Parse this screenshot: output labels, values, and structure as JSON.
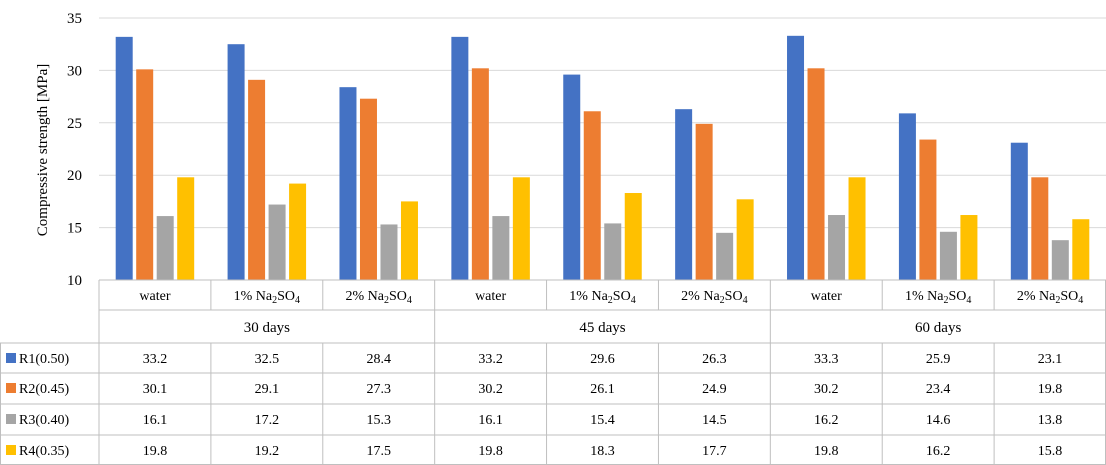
{
  "chart_data": {
    "type": "bar",
    "ylabel": "Compressive strength [MPa]",
    "ylim": [
      10,
      35
    ],
    "yticks": [
      10,
      15,
      20,
      25,
      30,
      35
    ],
    "grid": true,
    "legend": "data-table",
    "groups": [
      {
        "label": "30 days",
        "categories": [
          {
            "text": "water"
          },
          {
            "text": "1% Na",
            "sub": "2",
            "text2": "SO",
            "sub2": "4"
          },
          {
            "text": "2% Na",
            "sub": "2",
            "text2": "SO",
            "sub2": "4"
          }
        ]
      },
      {
        "label": "45 days",
        "categories": [
          {
            "text": "water"
          },
          {
            "text": "1% Na",
            "sub": "2",
            "text2": "SO",
            "sub2": "4"
          },
          {
            "text": "2% Na",
            "sub": "2",
            "text2": "SO",
            "sub2": "4"
          }
        ]
      },
      {
        "label": "60 days",
        "categories": [
          {
            "text": "water"
          },
          {
            "text": "1% Na",
            "sub": "2",
            "text2": "SO",
            "sub2": "4"
          },
          {
            "text": "2% Na",
            "sub": "2",
            "text2": "SO",
            "sub2": "4"
          }
        ]
      }
    ],
    "series": [
      {
        "name": "R1(0.50)",
        "color": "#4472C4",
        "values": [
          33.2,
          32.5,
          28.4,
          33.2,
          29.6,
          26.3,
          33.3,
          25.9,
          23.1
        ]
      },
      {
        "name": "R2(0.45)",
        "color": "#ED7D31",
        "values": [
          30.1,
          29.1,
          27.3,
          30.2,
          26.1,
          24.9,
          30.2,
          23.4,
          19.8
        ]
      },
      {
        "name": "R3(0.40)",
        "color": "#A5A5A5",
        "values": [
          16.1,
          17.2,
          15.3,
          16.1,
          15.4,
          14.5,
          16.2,
          14.6,
          13.8
        ]
      },
      {
        "name": "R4(0.35)",
        "color": "#FFC000",
        "values": [
          19.8,
          19.2,
          17.5,
          19.8,
          18.3,
          17.7,
          19.8,
          16.2,
          15.8
        ]
      }
    ]
  }
}
